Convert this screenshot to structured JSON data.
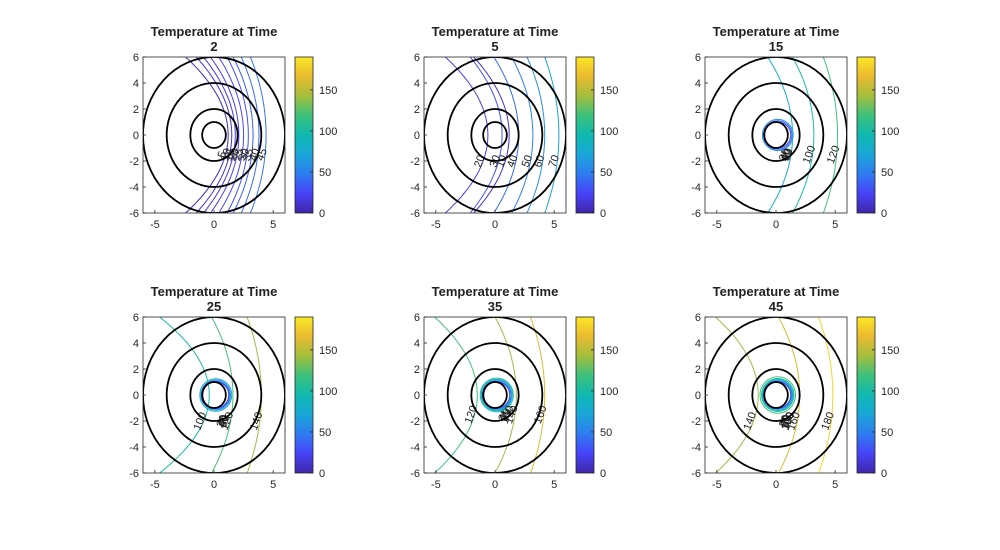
{
  "figure": {
    "colormap": [
      "#3e26a8",
      "#4743f8",
      "#2f7bf0",
      "#1aa6d8",
      "#0fb9b0",
      "#3cc17c",
      "#a4be3c",
      "#eaba30",
      "#fde725"
    ]
  },
  "chart_data": [
    {
      "type": "contour",
      "title_line1": "Temperature at Time",
      "title_line2": "2",
      "xlim": [
        -6,
        6
      ],
      "ylim": [
        -6,
        6
      ],
      "xticks": [
        -5,
        0,
        5
      ],
      "yticks": [
        -6,
        -4,
        -2,
        0,
        2,
        4,
        6
      ],
      "rings": [
        1,
        2,
        4,
        6
      ],
      "colorbar": {
        "min": 0,
        "max": 190,
        "ticks": [
          0,
          50,
          100,
          150
        ]
      },
      "contours": [
        {
          "level": 5,
          "label": "5",
          "x_axis": 1.2,
          "curvature": 0.6
        },
        {
          "level": 10,
          "label": "10",
          "x_axis": 1.5,
          "curvature": 0.5
        },
        {
          "level": 15,
          "label": "15",
          "x_axis": 1.8,
          "curvature": 0.45
        },
        {
          "level": 20,
          "label": "20",
          "x_axis": 2.1,
          "curvature": 0.4
        },
        {
          "level": 25,
          "label": "25",
          "x_axis": 2.5,
          "curvature": 0.35
        },
        {
          "level": 30,
          "label": "30",
          "x_axis": 2.9,
          "curvature": 0.3
        },
        {
          "level": 35,
          "label": "35",
          "x_axis": 3.3,
          "curvature": 0.28
        },
        {
          "level": 40,
          "label": "40",
          "x_axis": 3.8,
          "curvature": 0.25
        },
        {
          "level": 45,
          "label": "45",
          "x_axis": 4.4,
          "curvature": 0.22
        }
      ]
    },
    {
      "type": "contour",
      "title_line1": "Temperature at Time",
      "title_line2": "5",
      "xlim": [
        -6,
        6
      ],
      "ylim": [
        -6,
        6
      ],
      "xticks": [
        -5,
        0,
        5
      ],
      "yticks": [
        -6,
        -4,
        -2,
        0,
        2,
        4,
        6
      ],
      "rings": [
        1,
        2,
        4,
        6
      ],
      "colorbar": {
        "min": 0,
        "max": 190,
        "ticks": [
          0,
          50,
          100,
          150
        ]
      },
      "contours": [
        {
          "level": 10,
          "label": "10",
          "x_axis": 1.2,
          "curvature": 0.5
        },
        {
          "level": 20,
          "label": "20",
          "x_axis": -0.6,
          "curvature": 0.6
        },
        {
          "level": 30,
          "label": "30",
          "x_axis": 0.6,
          "curvature": 0.45
        },
        {
          "level": 40,
          "label": "40",
          "x_axis": 2.0,
          "curvature": 0.35
        },
        {
          "level": 50,
          "label": "50",
          "x_axis": 3.2,
          "curvature": 0.3
        },
        {
          "level": 60,
          "label": "60",
          "x_axis": 4.2,
          "curvature": 0.25
        },
        {
          "level": 70,
          "label": "70",
          "x_axis": 5.4,
          "curvature": 0.2
        }
      ]
    },
    {
      "type": "contour",
      "title_line1": "Temperature at Time",
      "title_line2": "15",
      "xlim": [
        -6,
        6
      ],
      "ylim": [
        -6,
        6
      ],
      "xticks": [
        -5,
        0,
        5
      ],
      "yticks": [
        -6,
        -4,
        -2,
        0,
        2,
        4,
        6
      ],
      "rings": [
        1,
        2,
        4,
        6
      ],
      "colorbar": {
        "min": 0,
        "max": 190,
        "ticks": [
          0,
          50,
          100,
          150
        ]
      },
      "contours": [
        {
          "level": 20,
          "label": "20",
          "x_axis": 1.05,
          "curvature": 0.2
        },
        {
          "level": 40,
          "label": "40",
          "x_axis": 1.15,
          "curvature": 0.2
        },
        {
          "level": 60,
          "label": "60",
          "x_axis": 1.25,
          "curvature": 0.2
        },
        {
          "level": 80,
          "label": "80",
          "x_axis": 1.4,
          "curvature": 0.35
        },
        {
          "level": 100,
          "label": "100",
          "x_axis": 3.2,
          "curvature": 0.3
        },
        {
          "level": 120,
          "label": "120",
          "x_axis": 5.2,
          "curvature": 0.2
        }
      ]
    },
    {
      "type": "contour",
      "title_line1": "Temperature at Time",
      "title_line2": "25",
      "xlim": [
        -6,
        6
      ],
      "ylim": [
        -6,
        6
      ],
      "xticks": [
        -5,
        0,
        5
      ],
      "yticks": [
        -6,
        -4,
        -2,
        0,
        2,
        4,
        6
      ],
      "rings": [
        1,
        2,
        4,
        6
      ],
      "colorbar": {
        "min": 0,
        "max": 190,
        "ticks": [
          0,
          50,
          100,
          150
        ]
      },
      "contours": [
        {
          "level": 20,
          "label": "20",
          "x_axis": 1.05,
          "curvature": 0.15
        },
        {
          "level": 40,
          "label": "40",
          "x_axis": 1.12,
          "curvature": 0.15
        },
        {
          "level": 60,
          "label": "60",
          "x_axis": 1.2,
          "curvature": 0.15
        },
        {
          "level": 80,
          "label": "80",
          "x_axis": 1.3,
          "curvature": 0.15
        },
        {
          "level": 100,
          "label": "100",
          "x_axis": -0.4,
          "curvature": 0.7
        },
        {
          "level": 120,
          "label": "120",
          "x_axis": 1.6,
          "curvature": 0.3
        },
        {
          "level": 140,
          "label": "140",
          "x_axis": 4.0,
          "curvature": 0.2
        }
      ]
    },
    {
      "type": "contour",
      "title_line1": "Temperature at Time",
      "title_line2": "35",
      "xlim": [
        -6,
        6
      ],
      "ylim": [
        -6,
        6
      ],
      "xticks": [
        -5,
        0,
        5
      ],
      "yticks": [
        -6,
        -4,
        -2,
        0,
        2,
        4,
        6
      ],
      "rings": [
        1,
        2,
        4,
        6
      ],
      "colorbar": {
        "min": 0,
        "max": 190,
        "ticks": [
          0,
          50,
          100,
          150
        ]
      },
      "contours": [
        {
          "level": 20,
          "label": "20",
          "x_axis": 1.05,
          "curvature": 0.1
        },
        {
          "level": 40,
          "label": "40",
          "x_axis": 1.1,
          "curvature": 0.1
        },
        {
          "level": 60,
          "label": "60",
          "x_axis": 1.18,
          "curvature": 0.1
        },
        {
          "level": 80,
          "label": "80",
          "x_axis": 1.26,
          "curvature": 0.1
        },
        {
          "level": 100,
          "label": "100",
          "x_axis": 1.35,
          "curvature": 0.1
        },
        {
          "level": 120,
          "label": "120",
          "x_axis": -1.5,
          "curvature": 0.6
        },
        {
          "level": 140,
          "label": "140",
          "x_axis": 1.8,
          "curvature": 0.3
        },
        {
          "level": 160,
          "label": "160",
          "x_axis": 4.2,
          "curvature": 0.2
        }
      ]
    },
    {
      "type": "contour",
      "title_line1": "Temperature at Time",
      "title_line2": "45",
      "xlim": [
        -6,
        6
      ],
      "ylim": [
        -6,
        6
      ],
      "xticks": [
        -5,
        0,
        5
      ],
      "yticks": [
        -6,
        -4,
        -2,
        0,
        2,
        4,
        6
      ],
      "rings": [
        1,
        2,
        4,
        6
      ],
      "colorbar": {
        "min": 0,
        "max": 190,
        "ticks": [
          0,
          50,
          100,
          150
        ]
      },
      "contours": [
        {
          "level": 20,
          "label": "20",
          "x_axis": 1.05,
          "curvature": 0.1
        },
        {
          "level": 40,
          "label": "40",
          "x_axis": 1.1,
          "curvature": 0.1
        },
        {
          "level": 60,
          "label": "60",
          "x_axis": 1.16,
          "curvature": 0.1
        },
        {
          "level": 80,
          "label": "80",
          "x_axis": 1.24,
          "curvature": 0.1
        },
        {
          "level": 100,
          "label": "100",
          "x_axis": 1.32,
          "curvature": 0.1
        },
        {
          "level": 120,
          "label": "120",
          "x_axis": 1.45,
          "curvature": 0.2
        },
        {
          "level": 140,
          "label": "140",
          "x_axis": -1.5,
          "curvature": 0.6
        },
        {
          "level": 160,
          "label": "160",
          "x_axis": 2.0,
          "curvature": 0.3
        },
        {
          "level": 180,
          "label": "180",
          "x_axis": 4.8,
          "curvature": 0.2
        }
      ]
    }
  ]
}
